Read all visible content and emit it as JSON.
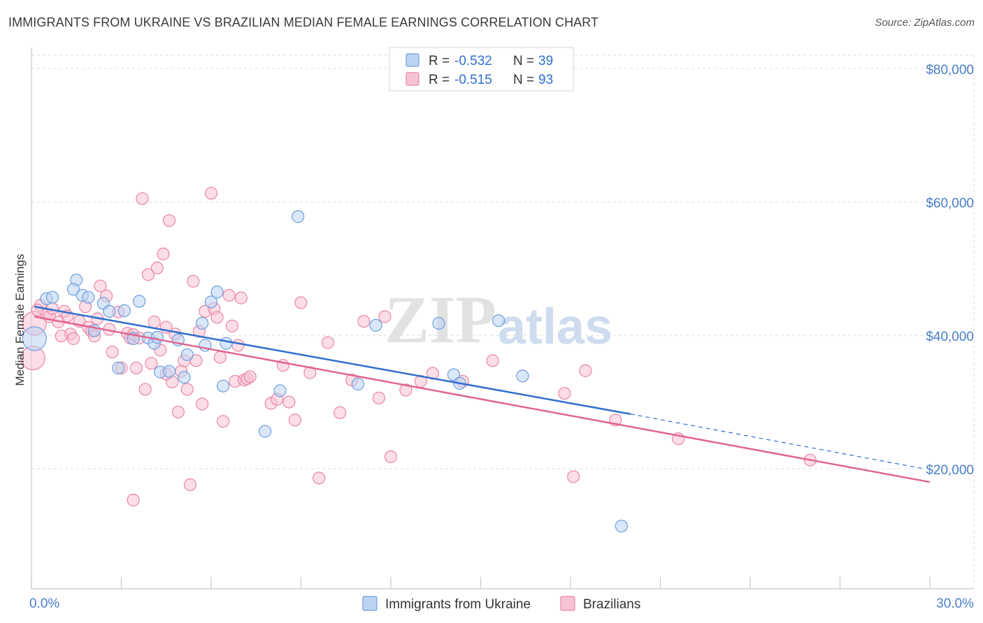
{
  "title": "IMMIGRANTS FROM UKRAINE VS BRAZILIAN MEDIAN FEMALE EARNINGS CORRELATION CHART",
  "source": "Source: ZipAtlas.com",
  "watermark": {
    "zip": "ZIP",
    "atlas": "atlas"
  },
  "stats": [
    {
      "r_label": "R = ",
      "r_value": "-0.532",
      "n_label": "N = ",
      "n_value": "39",
      "color": "#6d9ee0"
    },
    {
      "r_label": "R = ",
      "r_value": "-0.515",
      "n_label": "N = ",
      "n_value": "93",
      "color": "#ea86a6"
    }
  ],
  "colors": {
    "ukraine": "#6d9ee0",
    "ukraine_fill": "#bcd3f3",
    "ukraine_line": "#2f6fcf",
    "brazil": "#ea86a6",
    "brazil_fill": "#f7c3d4",
    "brazil_line": "#e06590",
    "grid": "#dddddd",
    "tick": "#4a7fc9"
  },
  "chart_data": {
    "type": "scatter",
    "title": "IMMIGRANTS FROM UKRAINE VS BRAZILIAN MEDIAN FEMALE EARNINGS CORRELATION CHART",
    "xlabel": "",
    "ylabel": "Median Female Earnings",
    "xlim": [
      0,
      30
    ],
    "ylim": [
      2000,
      82000
    ],
    "x_tick_labels": [
      {
        "value": 0,
        "label": "0.0%"
      },
      {
        "value": 30,
        "label": "30.0%"
      }
    ],
    "y_ticks": [
      {
        "value": 20000,
        "label": "$20,000"
      },
      {
        "value": 40000,
        "label": "$40,000"
      },
      {
        "value": 60000,
        "label": "$60,000"
      },
      {
        "value": 80000,
        "label": "$80,000"
      }
    ],
    "grid": true,
    "legend_position": "bottom-center",
    "series": [
      {
        "name": "Immigrants from Ukraine",
        "points": [
          [
            0.1,
            39500
          ],
          [
            0.5,
            45500
          ],
          [
            0.7,
            45700
          ],
          [
            1.5,
            48300
          ],
          [
            1.4,
            46900
          ],
          [
            1.7,
            46000
          ],
          [
            1.9,
            45700
          ],
          [
            2.1,
            40700
          ],
          [
            2.4,
            44800
          ],
          [
            2.6,
            43600
          ],
          [
            2.9,
            35100
          ],
          [
            3.1,
            43700
          ],
          [
            3.4,
            39500
          ],
          [
            3.6,
            45100
          ],
          [
            3.9,
            39600
          ],
          [
            4.1,
            38800
          ],
          [
            4.3,
            34500
          ],
          [
            4.6,
            34600
          ],
          [
            4.9,
            39300
          ],
          [
            5.1,
            33700
          ],
          [
            5.2,
            37100
          ],
          [
            5.7,
            41800
          ],
          [
            5.8,
            38500
          ],
          [
            6.0,
            45000
          ],
          [
            6.2,
            46500
          ],
          [
            6.5,
            38800
          ],
          [
            6.4,
            32400
          ],
          [
            7.8,
            25600
          ],
          [
            8.3,
            31700
          ],
          [
            8.9,
            57800
          ],
          [
            10.9,
            32700
          ],
          [
            11.5,
            41500
          ],
          [
            13.6,
            41800
          ],
          [
            14.1,
            34100
          ],
          [
            14.3,
            32800
          ],
          [
            15.6,
            42200
          ],
          [
            16.4,
            33900
          ],
          [
            19.7,
            11400
          ],
          [
            4.2,
            39700
          ]
        ],
        "trend": {
          "x0": 0.1,
          "y0": 44300,
          "x1": 20.0,
          "y1": 28200,
          "dash_x1": 29.8,
          "dash_y1": 20000
        }
      },
      {
        "name": "Brazilians",
        "points": [
          [
            0.05,
            36600
          ],
          [
            0.1,
            41800
          ],
          [
            0.3,
            44500
          ],
          [
            0.5,
            43200
          ],
          [
            0.6,
            42800
          ],
          [
            0.7,
            44000
          ],
          [
            0.9,
            42000
          ],
          [
            1.1,
            43600
          ],
          [
            1.2,
            42900
          ],
          [
            1.3,
            40200
          ],
          [
            1.4,
            39500
          ],
          [
            1.6,
            42100
          ],
          [
            1.8,
            44300
          ],
          [
            1.9,
            41200
          ],
          [
            2.0,
            40600
          ],
          [
            2.1,
            39900
          ],
          [
            2.2,
            42500
          ],
          [
            2.3,
            47400
          ],
          [
            2.5,
            45900
          ],
          [
            2.6,
            40900
          ],
          [
            2.7,
            37500
          ],
          [
            2.9,
            43500
          ],
          [
            3.0,
            35100
          ],
          [
            3.2,
            40300
          ],
          [
            3.3,
            39600
          ],
          [
            3.4,
            40100
          ],
          [
            3.5,
            35100
          ],
          [
            3.6,
            39600
          ],
          [
            3.7,
            60500
          ],
          [
            3.8,
            31900
          ],
          [
            3.9,
            49100
          ],
          [
            4.0,
            35800
          ],
          [
            4.1,
            42000
          ],
          [
            4.2,
            50100
          ],
          [
            4.3,
            37800
          ],
          [
            4.4,
            52200
          ],
          [
            4.5,
            41200
          ],
          [
            4.6,
            57200
          ],
          [
            4.7,
            33000
          ],
          [
            4.8,
            40200
          ],
          [
            4.9,
            28500
          ],
          [
            5.0,
            34600
          ],
          [
            5.1,
            36200
          ],
          [
            5.2,
            31900
          ],
          [
            5.3,
            17600
          ],
          [
            5.4,
            48100
          ],
          [
            5.5,
            36200
          ],
          [
            5.6,
            40600
          ],
          [
            5.7,
            29700
          ],
          [
            5.8,
            43600
          ],
          [
            6.0,
            61300
          ],
          [
            6.1,
            44000
          ],
          [
            6.2,
            42700
          ],
          [
            6.3,
            36700
          ],
          [
            6.4,
            27100
          ],
          [
            6.6,
            46000
          ],
          [
            6.8,
            33100
          ],
          [
            6.9,
            38500
          ],
          [
            7.0,
            45600
          ],
          [
            7.1,
            33300
          ],
          [
            7.2,
            33500
          ],
          [
            7.3,
            33800
          ],
          [
            8.0,
            29800
          ],
          [
            8.4,
            35500
          ],
          [
            8.6,
            30000
          ],
          [
            8.8,
            27300
          ],
          [
            9.0,
            44900
          ],
          [
            9.3,
            34400
          ],
          [
            9.6,
            18600
          ],
          [
            9.9,
            38900
          ],
          [
            10.3,
            28400
          ],
          [
            10.7,
            33300
          ],
          [
            11.1,
            42100
          ],
          [
            11.6,
            30600
          ],
          [
            11.8,
            42800
          ],
          [
            12.0,
            21800
          ],
          [
            12.5,
            31800
          ],
          [
            13.4,
            34300
          ],
          [
            14.4,
            33100
          ],
          [
            15.4,
            36200
          ],
          [
            17.8,
            31300
          ],
          [
            18.1,
            18800
          ],
          [
            18.5,
            34700
          ],
          [
            19.5,
            27300
          ],
          [
            21.6,
            24500
          ],
          [
            26.0,
            21300
          ],
          [
            0.2,
            43800
          ],
          [
            1.0,
            39900
          ],
          [
            3.4,
            15300
          ],
          [
            4.5,
            34200
          ],
          [
            6.7,
            41400
          ],
          [
            8.2,
            30400
          ],
          [
            13.0,
            33100
          ]
        ],
        "trend": {
          "x0": 0.1,
          "y0": 42800,
          "x1": 30.0,
          "y1": 18000
        }
      }
    ]
  }
}
